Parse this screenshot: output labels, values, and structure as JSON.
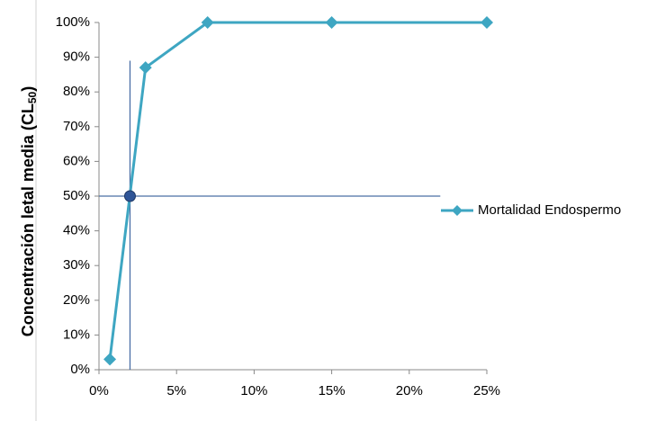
{
  "chart_data": {
    "type": "line",
    "y_label": "Concentración letal media (CL",
    "y_label_sub": "50",
    "y_label_end": ")",
    "x": [
      0.7,
      3,
      7,
      15,
      25
    ],
    "series": [
      {
        "name": "Mortalidad Endospermo",
        "color": "#3ea6c2",
        "values": [
          3,
          87,
          100,
          100,
          100
        ]
      }
    ],
    "xlim": [
      0,
      25
    ],
    "xticks": [
      {
        "value": 0,
        "label": "0%"
      },
      {
        "value": 5,
        "label": "5%"
      },
      {
        "value": 10,
        "label": "10%"
      },
      {
        "value": 15,
        "label": "15%"
      },
      {
        "value": 20,
        "label": "20%"
      },
      {
        "value": 25,
        "label": "25%"
      }
    ],
    "ylim": [
      0,
      100
    ],
    "yticks": [
      {
        "value": 0,
        "label": "0%"
      },
      {
        "value": 10,
        "label": "10%"
      },
      {
        "value": 20,
        "label": "20%"
      },
      {
        "value": 30,
        "label": "30%"
      },
      {
        "value": 40,
        "label": "40%"
      },
      {
        "value": 50,
        "label": "50%"
      },
      {
        "value": 60,
        "label": "60%"
      },
      {
        "value": 70,
        "label": "70%"
      },
      {
        "value": 80,
        "label": "80%"
      },
      {
        "value": 90,
        "label": "90%"
      },
      {
        "value": 100,
        "label": "100%"
      }
    ],
    "grid": false,
    "legend": "right",
    "marker": {
      "x": 2,
      "y": 50,
      "color": "#2f5597"
    },
    "vline": {
      "x": 2,
      "ymax": 89,
      "color": "#4a6fa5"
    },
    "hline": {
      "y": 50,
      "xmax": 22,
      "color": "#4a6fa5"
    }
  }
}
